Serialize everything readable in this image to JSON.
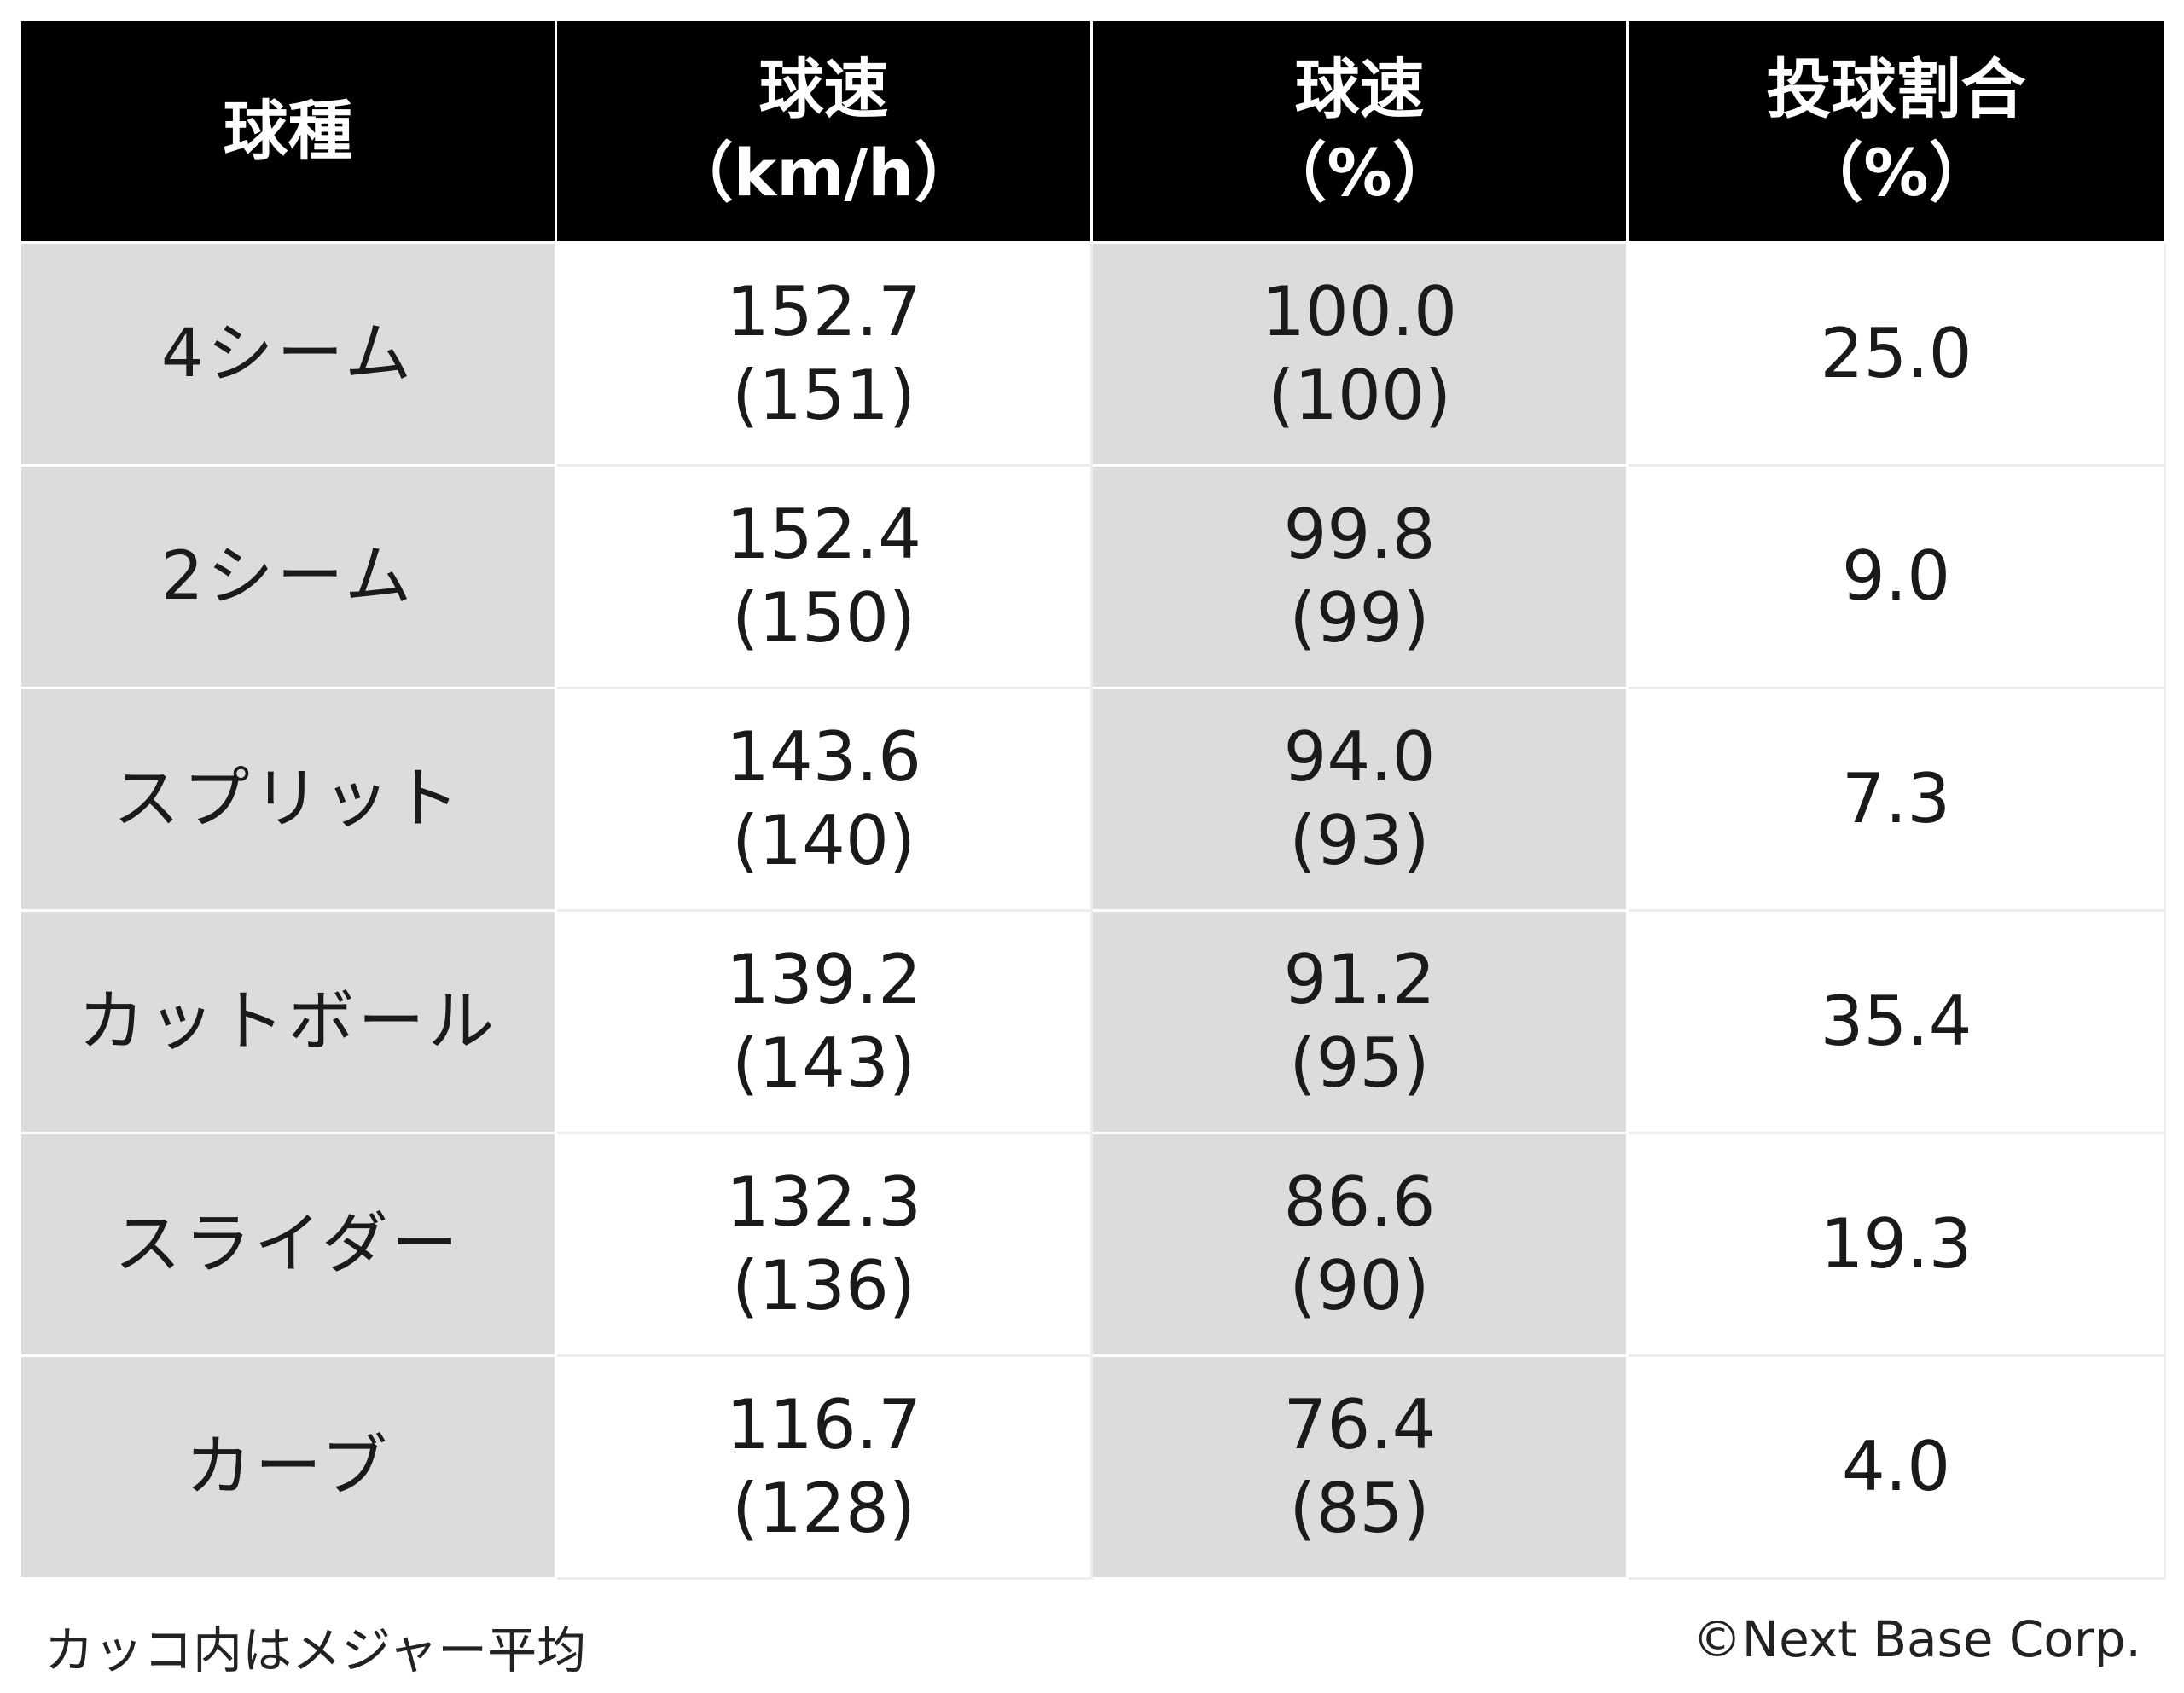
{
  "chart_data": {
    "type": "table",
    "columns": [
      {
        "line1": "球種",
        "line2": ""
      },
      {
        "line1": "球速",
        "line2": "（km/h）"
      },
      {
        "line1": "球速",
        "line2": "（%）"
      },
      {
        "line1": "投球割合",
        "line2": "（%）"
      }
    ],
    "rows": [
      {
        "pitch": "4シーム",
        "speed": "152.7",
        "speed_avg": "(151)",
        "speed_pct": "100.0",
        "speed_pct_avg": "(100)",
        "share": "25.0"
      },
      {
        "pitch": "2シーム",
        "speed": "152.4",
        "speed_avg": "(150)",
        "speed_pct": "99.8",
        "speed_pct_avg": "(99)",
        "share": "9.0"
      },
      {
        "pitch": "スプリット",
        "speed": "143.6",
        "speed_avg": "(140)",
        "speed_pct": "94.0",
        "speed_pct_avg": "(93)",
        "share": "7.3"
      },
      {
        "pitch": "カットボール",
        "speed": "139.2",
        "speed_avg": "(143)",
        "speed_pct": "91.2",
        "speed_pct_avg": "(95)",
        "share": "35.4"
      },
      {
        "pitch": "スライダー",
        "speed": "132.3",
        "speed_avg": "(136)",
        "speed_pct": "86.6",
        "speed_pct_avg": "(90)",
        "share": "19.3"
      },
      {
        "pitch": "カーブ",
        "speed": "116.7",
        "speed_avg": "(128)",
        "speed_pct": "76.4",
        "speed_pct_avg": "(85)",
        "share": "4.0"
      }
    ],
    "colors": {
      "header_bg": "#000000",
      "header_text": "#ffffff",
      "shaded_cell": "#dcdcdc",
      "plain_cell": "#ffffff"
    }
  },
  "footnote": "カッコ内はメジャー平均",
  "copyright": "©Next Base Corp."
}
